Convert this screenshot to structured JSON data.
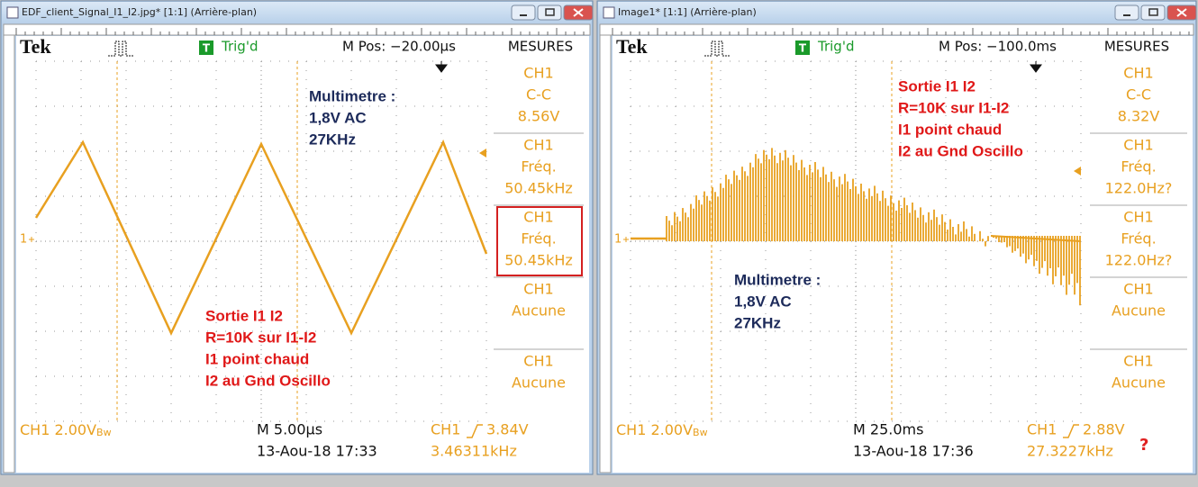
{
  "windows": [
    {
      "title": "EDF_client_Signal_I1_I2.jpg* [1:1] (Arrière-plan)",
      "scope": {
        "brand": "Tek",
        "trigger_icon": "T",
        "trigger_status": "Trig'd",
        "m_pos": "M Pos: −20.00µs",
        "menu_title": "MESURES",
        "marker": "1",
        "measures": [
          {
            "channel": "CH1",
            "label": "C-C",
            "value": "8.56V"
          },
          {
            "channel": "CH1",
            "label": "Fréq.",
            "value": "50.45kHz"
          },
          {
            "channel": "CH1",
            "label": "Fréq.",
            "value": "50.45kHz",
            "highlighted": true
          },
          {
            "channel": "CH1",
            "label": "Aucune"
          },
          {
            "channel": "CH1",
            "label": "Aucune"
          }
        ],
        "ch_scale": "CH1  2.00V",
        "bandwidth": "Bw",
        "timebase": "M 5.00µs",
        "datetime": "13-Aou-18 17:33",
        "trigger_source": "CH1",
        "trigger_level": "3.84V",
        "frequency": "3.46311kHz",
        "annotations": {
          "multimeter": [
            "Multimetre :",
            "1,8V AC",
            "27KHz"
          ],
          "setup": [
            "Sortie I1 I2",
            "R=10K sur I1-I2",
            "I1 point chaud",
            "I2 au Gnd Oscillo"
          ]
        }
      }
    },
    {
      "title": "Image1* [1:1] (Arrière-plan)",
      "scope": {
        "brand": "Tek",
        "trigger_icon": "T",
        "trigger_status": "Trig'd",
        "m_pos": "M Pos: −100.0ms",
        "menu_title": "MESURES",
        "marker": "1",
        "measures": [
          {
            "channel": "CH1",
            "label": "C-C",
            "value": "8.32V"
          },
          {
            "channel": "CH1",
            "label": "Fréq.",
            "value": "122.0Hz?"
          },
          {
            "channel": "CH1",
            "label": "Fréq.",
            "value": "122.0Hz?"
          },
          {
            "channel": "CH1",
            "label": "Aucune"
          },
          {
            "channel": "CH1",
            "label": "Aucune"
          }
        ],
        "ch_scale": "CH1  2.00V",
        "bandwidth": "Bw",
        "timebase": "M 25.0ms",
        "datetime": "13-Aou-18 17:36",
        "trigger_source": "CH1",
        "trigger_level": "2.88V",
        "frequency": "27.3227kHz",
        "note": "?",
        "annotations": {
          "multimeter": [
            "Multimetre :",
            "1,8V AC",
            "27KHz"
          ],
          "setup": [
            "Sortie I1 I2",
            "R=10K sur I1-I2",
            "I1 point chaud",
            "I2 au Gnd Oscillo"
          ]
        }
      }
    }
  ]
}
